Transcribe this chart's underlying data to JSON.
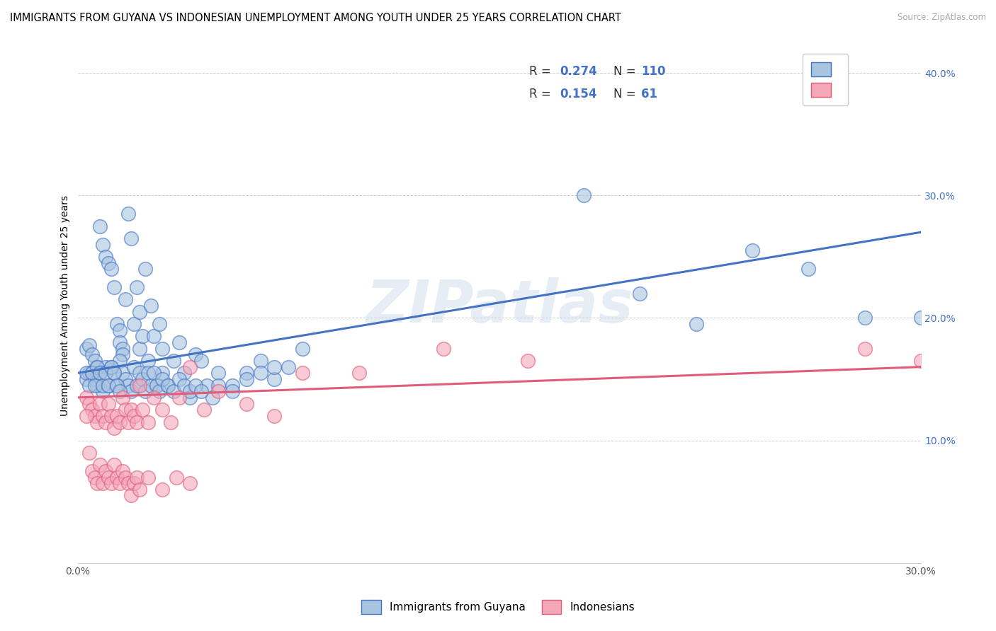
{
  "title": "IMMIGRANTS FROM GUYANA VS INDONESIAN UNEMPLOYMENT AMONG YOUTH UNDER 25 YEARS CORRELATION CHART",
  "source": "Source: ZipAtlas.com",
  "ylabel": "Unemployment Among Youth under 25 years",
  "xlim": [
    0.0,
    0.3
  ],
  "ylim": [
    0.0,
    0.42
  ],
  "xtick_positions": [
    0.0,
    0.3
  ],
  "xticklabels": [
    "0.0%",
    "30.0%"
  ],
  "ytick_positions": [
    0.1,
    0.2,
    0.3,
    0.4
  ],
  "yticklabels": [
    "10.0%",
    "20.0%",
    "30.0%",
    "40.0%"
  ],
  "blue_R": 0.274,
  "blue_N": 110,
  "pink_R": 0.154,
  "pink_N": 61,
  "blue_color": "#a8c4e0",
  "pink_color": "#f4a7b9",
  "blue_edge_color": "#4472c4",
  "pink_edge_color": "#e05c7a",
  "blue_line_color": "#4472c4",
  "pink_line_color": "#e05c7a",
  "legend_label_blue": "Immigrants from Guyana",
  "legend_label_pink": "Indonesians",
  "watermark": "ZIPatlas",
  "legend_R_color": "#4472c4",
  "legend_N_color": "#4472c4",
  "blue_line_start_y": 0.155,
  "blue_line_end_y": 0.27,
  "pink_line_start_y": 0.135,
  "pink_line_end_y": 0.16,
  "blue_scatter_x": [
    0.003,
    0.004,
    0.005,
    0.006,
    0.007,
    0.008,
    0.009,
    0.01,
    0.011,
    0.012,
    0.013,
    0.014,
    0.015,
    0.015,
    0.016,
    0.016,
    0.017,
    0.018,
    0.019,
    0.02,
    0.021,
    0.022,
    0.022,
    0.023,
    0.024,
    0.025,
    0.026,
    0.027,
    0.028,
    0.029,
    0.03,
    0.03,
    0.032,
    0.034,
    0.036,
    0.038,
    0.04,
    0.042,
    0.044,
    0.046,
    0.048,
    0.05,
    0.055,
    0.06,
    0.065,
    0.07,
    0.075,
    0.08,
    0.003,
    0.004,
    0.005,
    0.006,
    0.007,
    0.008,
    0.009,
    0.01,
    0.011,
    0.012,
    0.013,
    0.014,
    0.015,
    0.016,
    0.017,
    0.018,
    0.019,
    0.02,
    0.021,
    0.022,
    0.023,
    0.024,
    0.025,
    0.026,
    0.027,
    0.028,
    0.029,
    0.03,
    0.032,
    0.034,
    0.036,
    0.038,
    0.04,
    0.042,
    0.044,
    0.05,
    0.055,
    0.06,
    0.065,
    0.07,
    0.003,
    0.004,
    0.005,
    0.006,
    0.007,
    0.008,
    0.009,
    0.01,
    0.011,
    0.012,
    0.013,
    0.014,
    0.015,
    0.18,
    0.2,
    0.22,
    0.24,
    0.26,
    0.28,
    0.3
  ],
  "blue_scatter_y": [
    0.175,
    0.178,
    0.17,
    0.165,
    0.16,
    0.275,
    0.26,
    0.25,
    0.245,
    0.24,
    0.225,
    0.195,
    0.19,
    0.18,
    0.175,
    0.17,
    0.215,
    0.285,
    0.265,
    0.195,
    0.225,
    0.175,
    0.205,
    0.185,
    0.24,
    0.165,
    0.21,
    0.185,
    0.145,
    0.195,
    0.155,
    0.175,
    0.145,
    0.165,
    0.18,
    0.155,
    0.135,
    0.17,
    0.165,
    0.145,
    0.135,
    0.155,
    0.145,
    0.155,
    0.165,
    0.15,
    0.16,
    0.175,
    0.15,
    0.155,
    0.155,
    0.15,
    0.145,
    0.155,
    0.14,
    0.16,
    0.145,
    0.16,
    0.155,
    0.145,
    0.165,
    0.155,
    0.15,
    0.145,
    0.14,
    0.16,
    0.145,
    0.155,
    0.15,
    0.14,
    0.155,
    0.145,
    0.155,
    0.145,
    0.14,
    0.15,
    0.145,
    0.14,
    0.15,
    0.145,
    0.14,
    0.145,
    0.14,
    0.145,
    0.14,
    0.15,
    0.155,
    0.16,
    0.155,
    0.145,
    0.155,
    0.145,
    0.16,
    0.155,
    0.145,
    0.155,
    0.145,
    0.16,
    0.155,
    0.145,
    0.14,
    0.3,
    0.22,
    0.195,
    0.255,
    0.24,
    0.2,
    0.2
  ],
  "pink_scatter_x": [
    0.003,
    0.004,
    0.005,
    0.006,
    0.007,
    0.008,
    0.009,
    0.01,
    0.011,
    0.012,
    0.013,
    0.014,
    0.015,
    0.016,
    0.017,
    0.018,
    0.019,
    0.02,
    0.021,
    0.022,
    0.023,
    0.025,
    0.027,
    0.03,
    0.033,
    0.036,
    0.04,
    0.045,
    0.05,
    0.06,
    0.07,
    0.08,
    0.003,
    0.004,
    0.005,
    0.006,
    0.007,
    0.008,
    0.009,
    0.01,
    0.011,
    0.012,
    0.013,
    0.014,
    0.015,
    0.016,
    0.017,
    0.018,
    0.019,
    0.02,
    0.021,
    0.022,
    0.025,
    0.03,
    0.035,
    0.04,
    0.1,
    0.13,
    0.16,
    0.28,
    0.3
  ],
  "pink_scatter_y": [
    0.135,
    0.13,
    0.125,
    0.12,
    0.115,
    0.13,
    0.12,
    0.115,
    0.13,
    0.12,
    0.11,
    0.12,
    0.115,
    0.135,
    0.125,
    0.115,
    0.125,
    0.12,
    0.115,
    0.145,
    0.125,
    0.115,
    0.135,
    0.125,
    0.115,
    0.135,
    0.16,
    0.125,
    0.14,
    0.13,
    0.12,
    0.155,
    0.12,
    0.09,
    0.075,
    0.07,
    0.065,
    0.08,
    0.065,
    0.075,
    0.07,
    0.065,
    0.08,
    0.07,
    0.065,
    0.075,
    0.07,
    0.065,
    0.055,
    0.065,
    0.07,
    0.06,
    0.07,
    0.06,
    0.07,
    0.065,
    0.155,
    0.175,
    0.165,
    0.175,
    0.165
  ]
}
